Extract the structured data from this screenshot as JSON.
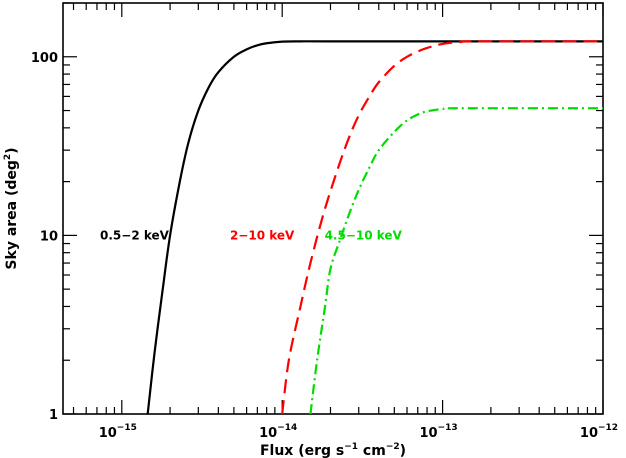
{
  "chart_data": {
    "type": "line",
    "title": "",
    "xlabel": {
      "main": "Flux (erg s",
      "exp1": "−1",
      "mid": " cm",
      "exp2": "−2",
      "end": ")"
    },
    "ylabel": {
      "main": "Sky area (deg",
      "exp": "2",
      "end": ")"
    },
    "xscale": "log",
    "yscale": "log",
    "xlim": [
      4.3e-16,
      1e-12
    ],
    "ylim": [
      1,
      200
    ],
    "x_ticks": [
      {
        "value": 1e-15,
        "base": "10",
        "exp": "−15"
      },
      {
        "value": 1e-14,
        "base": "10",
        "exp": "−14"
      },
      {
        "value": 1e-13,
        "base": "10",
        "exp": "−13"
      },
      {
        "value": 1e-12,
        "base": "10",
        "exp": "−12"
      }
    ],
    "y_ticks": [
      {
        "value": 1,
        "label": "1"
      },
      {
        "value": 10,
        "label": "10"
      },
      {
        "value": 100,
        "label": "100"
      }
    ],
    "grid": false,
    "legend": "inline labels",
    "series": [
      {
        "name": "0.5−2 keV",
        "color": "#000000",
        "dash": "solid",
        "x": [
          1.45e-15,
          1.6e-15,
          1.8e-15,
          2e-15,
          2.3e-15,
          2.6e-15,
          3e-15,
          3.5e-15,
          4e-15,
          5e-15,
          6e-15,
          7e-15,
          8e-15,
          1e-14,
          1.3e-14,
          2e-14,
          5e-14,
          1e-13,
          1e-12
        ],
        "y": [
          1,
          2.2,
          5,
          10,
          20,
          33,
          50,
          68,
          82,
          100,
          110,
          116,
          119,
          121.5,
          122,
          122,
          122,
          122,
          122
        ]
      },
      {
        "name": "2−10 keV",
        "color": "#ff0000",
        "dash": "dashed",
        "x": [
          1e-14,
          1.1e-14,
          1.3e-14,
          1.5e-14,
          1.8e-14,
          2.2e-14,
          2.6e-14,
          3e-14,
          3.5e-14,
          4e-14,
          5e-14,
          6e-14,
          7e-14,
          8e-14,
          1e-13,
          1.3e-13,
          1.6e-13,
          1e-12
        ],
        "y": [
          1,
          2,
          4,
          7,
          13,
          23,
          35,
          47,
          60,
          72,
          89,
          100,
          107,
          112,
          118,
          121,
          122,
          122
        ]
      },
      {
        "name": "4.5−10 keV",
        "color": "#00dd00",
        "dash": "dashdot",
        "x": [
          1.5e-14,
          1.65e-14,
          1.85e-14,
          2e-14,
          2.3e-14,
          2.6e-14,
          3e-14,
          3.5e-14,
          4e-14,
          5e-14,
          6e-14,
          7e-14,
          8e-14,
          1e-13,
          1.3e-13,
          1e-12
        ],
        "y": [
          1,
          2,
          4,
          6.5,
          9.5,
          13,
          18,
          24,
          30,
          38,
          44,
          47.5,
          49.5,
          51,
          51.5,
          51.5
        ]
      }
    ],
    "labels": [
      {
        "text": "0.5−2 keV",
        "color": "#000000",
        "x": 1.2e-15,
        "y": 10
      },
      {
        "text": "2−10 keV",
        "color": "#ff0000",
        "x": 7.5e-15,
        "y": 10
      },
      {
        "text": "4.5−10 keV",
        "color": "#00dd00",
        "x": 3.2e-14,
        "y": 10
      }
    ]
  }
}
